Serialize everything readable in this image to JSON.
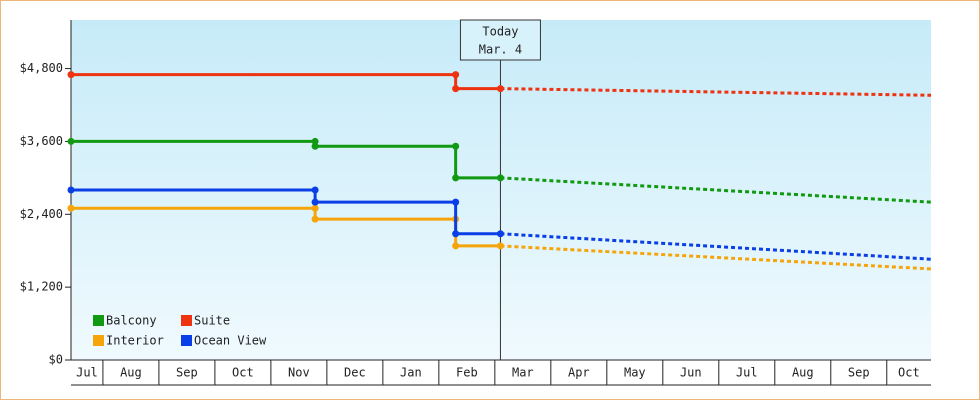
{
  "chart_data": {
    "type": "line",
    "step": true,
    "xlim": [
      0.43,
      15.79
    ],
    "ylim": [
      0,
      5600
    ],
    "xticks": [
      {
        "value": 0,
        "label": "Jul"
      },
      {
        "value": 1,
        "label": "Aug"
      },
      {
        "value": 2,
        "label": "Sep"
      },
      {
        "value": 3,
        "label": "Oct"
      },
      {
        "value": 4,
        "label": "Nov"
      },
      {
        "value": 5,
        "label": "Dec"
      },
      {
        "value": 6,
        "label": "Jan"
      },
      {
        "value": 7,
        "label": "Feb"
      },
      {
        "value": 8,
        "label": "Mar"
      },
      {
        "value": 9,
        "label": "Apr"
      },
      {
        "value": 10,
        "label": "May"
      },
      {
        "value": 11,
        "label": "Jun"
      },
      {
        "value": 12,
        "label": "Jul"
      },
      {
        "value": 13,
        "label": "Aug"
      },
      {
        "value": 14,
        "label": "Sep"
      },
      {
        "value": 15,
        "label": "Oct"
      }
    ],
    "yticks": [
      {
        "value": 0,
        "label": "$0"
      },
      {
        "value": 1200,
        "label": "$1,200"
      },
      {
        "value": 2400,
        "label": "$2,400"
      },
      {
        "value": 3600,
        "label": "$3,600"
      },
      {
        "value": 4800,
        "label": "$4,800"
      }
    ],
    "annotation": {
      "x": 8.1,
      "lines": [
        "Today",
        "Mar. 4"
      ]
    },
    "legend": "bottom-left",
    "series": [
      {
        "name": "Balcony",
        "color": "#119911",
        "x": [
          0.43,
          4.79,
          7.3,
          8.1
        ],
        "values": [
          3600,
          3520,
          3000,
          3000
        ],
        "forecast": {
          "x": [
            8.1,
            15.79
          ],
          "values": [
            3000,
            2600
          ]
        }
      },
      {
        "name": "Suite",
        "color": "#ee3311",
        "x": [
          0.43,
          7.3,
          8.1
        ],
        "values": [
          4700,
          4470,
          4470
        ],
        "forecast": {
          "x": [
            8.1,
            15.79
          ],
          "values": [
            4470,
            4360
          ]
        }
      },
      {
        "name": "Interior",
        "color": "#f5a50a",
        "x": [
          0.43,
          4.79,
          7.3,
          8.1
        ],
        "values": [
          2500,
          2320,
          1880,
          1880
        ],
        "forecast": {
          "x": [
            8.1,
            15.79
          ],
          "values": [
            1880,
            1500
          ]
        }
      },
      {
        "name": "Ocean View",
        "color": "#0a3ee6",
        "x": [
          0.43,
          4.79,
          7.3,
          8.1
        ],
        "values": [
          2800,
          2600,
          2080,
          2080
        ],
        "forecast": {
          "x": [
            8.1,
            15.79
          ],
          "values": [
            2080,
            1660
          ]
        }
      }
    ]
  }
}
